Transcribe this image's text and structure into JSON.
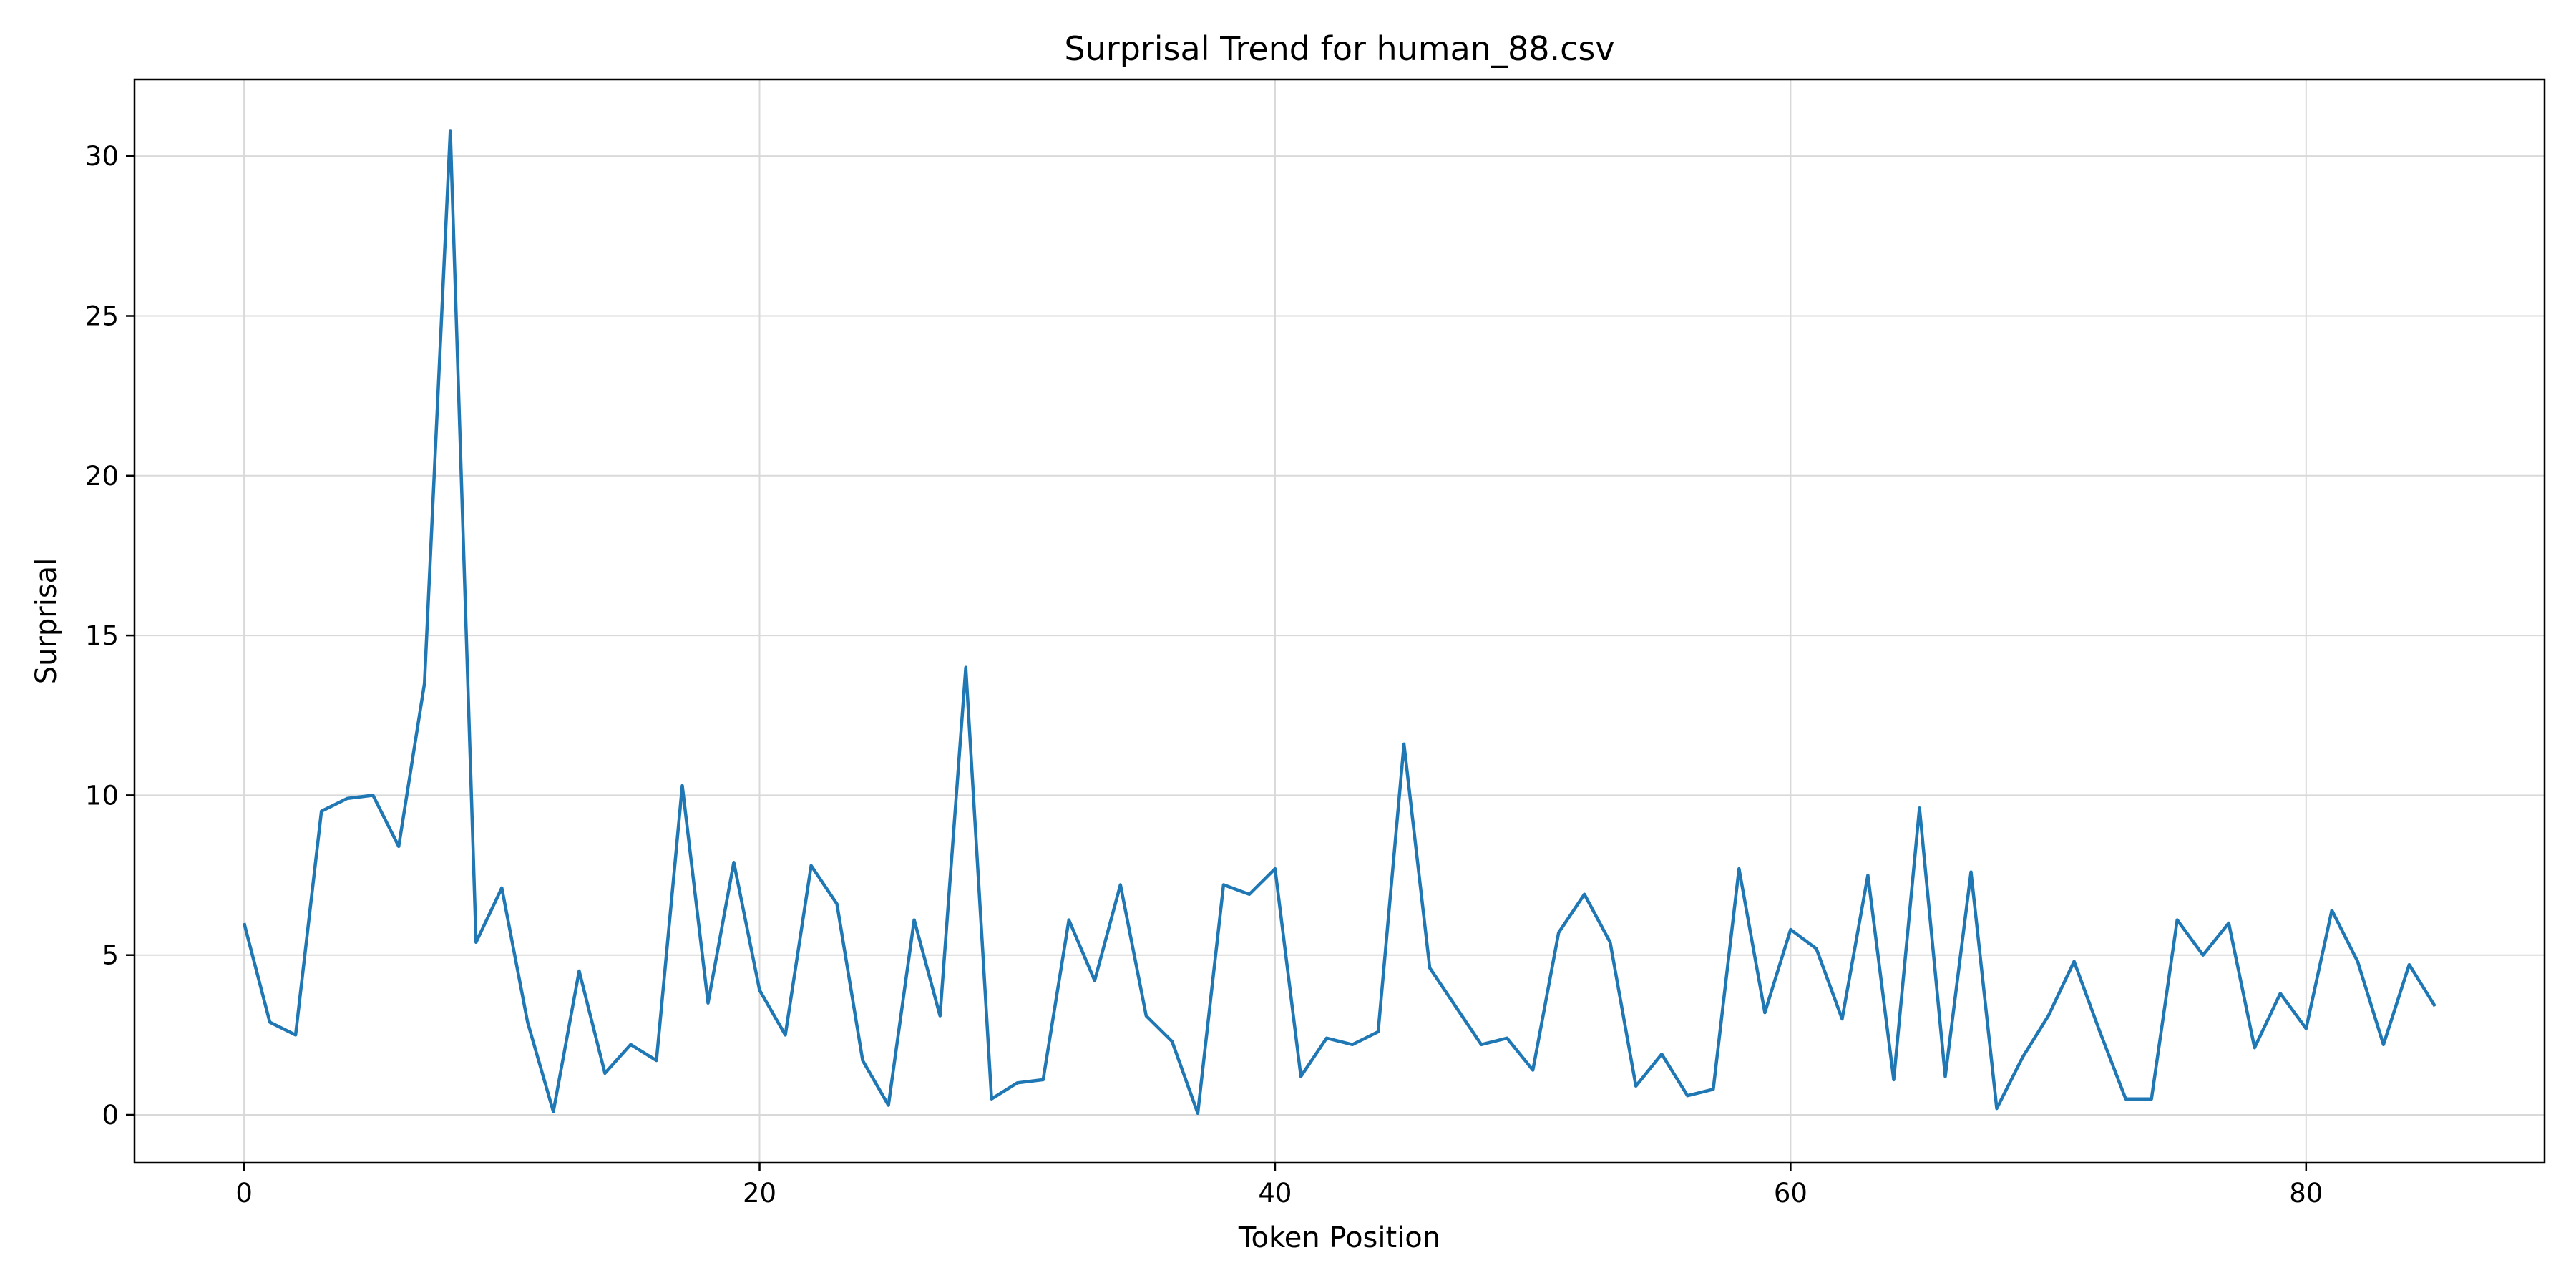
{
  "chart_data": {
    "type": "line",
    "title": "Surprisal Trend for human_88.csv",
    "xlabel": "Token Position",
    "ylabel": "Surprisal",
    "xlim": [
      -4.25,
      89.25
    ],
    "ylim": [
      -1.5,
      32.4
    ],
    "xticks": [
      0,
      20,
      40,
      60,
      80
    ],
    "yticks": [
      0,
      5,
      10,
      15,
      20,
      25,
      30
    ],
    "grid": true,
    "line_color": "#1f77b4",
    "series": [
      {
        "x": [
          0,
          1,
          2,
          3,
          4,
          5,
          6,
          7,
          8,
          9,
          10,
          11,
          12,
          13,
          14,
          15,
          16,
          17,
          18,
          19,
          20,
          21,
          22,
          23,
          24,
          25,
          26,
          27,
          28,
          29,
          30,
          31,
          32,
          33,
          34,
          35,
          36,
          37,
          38,
          39,
          40,
          41,
          42,
          43,
          44,
          45,
          46,
          47,
          48,
          49,
          50,
          51,
          52,
          53,
          54,
          55,
          56,
          57,
          58,
          59,
          60,
          61,
          62,
          63,
          64,
          65,
          66,
          67,
          68,
          69,
          70,
          71,
          72,
          73,
          74,
          75,
          76,
          77,
          78,
          79,
          80,
          81,
          82,
          83,
          84,
          85
        ],
        "values": [
          6.0,
          2.9,
          2.5,
          9.5,
          9.9,
          10.0,
          8.4,
          13.5,
          30.8,
          5.4,
          7.1,
          2.9,
          0.1,
          4.5,
          1.3,
          2.2,
          1.7,
          10.3,
          3.5,
          7.9,
          3.9,
          2.5,
          7.8,
          6.6,
          1.7,
          0.3,
          6.1,
          3.1,
          14.0,
          0.5,
          1.0,
          1.1,
          6.1,
          4.2,
          7.2,
          3.1,
          2.3,
          0.05,
          7.2,
          6.9,
          7.7,
          1.2,
          2.4,
          2.2,
          2.6,
          11.6,
          4.6,
          3.4,
          2.2,
          2.4,
          1.4,
          5.7,
          6.9,
          5.4,
          0.9,
          1.9,
          0.6,
          0.8,
          7.7,
          3.2,
          5.8,
          5.2,
          3.0,
          7.5,
          1.1,
          9.6,
          1.2,
          7.6,
          0.2,
          1.8,
          3.1,
          4.8,
          2.6,
          0.5,
          0.5,
          6.1,
          5.0,
          6.0,
          2.1,
          3.8,
          2.7,
          6.4,
          4.8,
          2.2,
          4.7,
          3.4
        ]
      }
    ]
  }
}
